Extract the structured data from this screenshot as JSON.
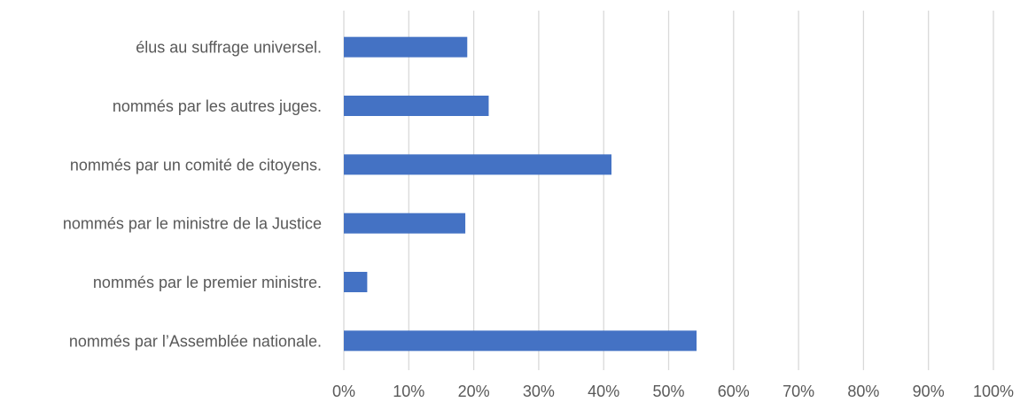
{
  "chart_data": {
    "type": "bar",
    "orientation": "horizontal",
    "categories": [
      "élus au suffrage universel.",
      "nommés par les autres juges.",
      "nommés par un comité de citoyens.",
      "nommés par le ministre de la Justice",
      "nommés par le premier ministre.",
      "nommés par l’Assemblée nationale."
    ],
    "values": [
      19,
      22.3,
      41.2,
      18.7,
      3.6,
      54.3
    ],
    "value_unit": "%",
    "xlim": [
      0,
      100
    ],
    "xticks": [
      "0%",
      "10%",
      "20%",
      "30%",
      "40%",
      "50%",
      "60%",
      "70%",
      "80%",
      "90%",
      "100%"
    ],
    "title": "",
    "xlabel": "",
    "ylabel": "",
    "grid": "vertical",
    "legend": "none",
    "colors": {
      "bar": "#4472C4",
      "grid": "#D9D9D9",
      "text": "#595959"
    }
  }
}
